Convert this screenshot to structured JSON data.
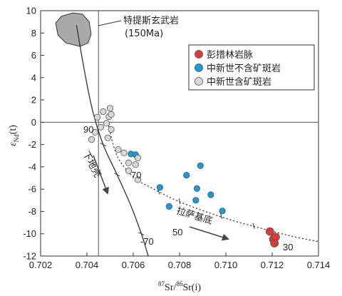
{
  "chart_data": {
    "type": "scatter",
    "xlabel": {
      "sup1": "87",
      "mid1": "Sr/",
      "sup2": "86",
      "mid2": "Sr(i)"
    },
    "ylabel": {
      "eps": "ε",
      "sub": "Nd",
      "rest": "(t)"
    },
    "xlim": [
      0.702,
      0.714
    ],
    "ylim": [
      -12,
      10
    ],
    "xticks": [
      "0.702",
      "0.704",
      "0.706",
      "0.708",
      "0.710",
      "0.712",
      "0.714"
    ],
    "yticks": [
      "10",
      "8",
      "6",
      "4",
      "2",
      "0",
      "-2",
      "-4",
      "-6",
      "-8",
      "-10",
      "-12"
    ],
    "ref_lines": {
      "x": 0.7045,
      "y": 0
    },
    "legend": {
      "placement": "top-right",
      "items": [
        {
          "label": "彭措林岩脉",
          "color": "#d83a3a"
        },
        {
          "label": "中新世不含矿斑岩",
          "color": "#1a9ad6"
        },
        {
          "label": "中新世含矿斑岩",
          "color": "#d8d8d8"
        }
      ]
    },
    "series": [
      {
        "name": "彭措林岩脉",
        "color": "#d83a3a",
        "points": [
          [
            0.7119,
            -9.8
          ],
          [
            0.71205,
            -10.5
          ],
          [
            0.71215,
            -10.3
          ],
          [
            0.7121,
            -10.85
          ]
        ]
      },
      {
        "name": "中新世不含矿斑岩",
        "color": "#1a9ad6",
        "points": [
          [
            0.7059,
            -2.85
          ],
          [
            0.7061,
            -2.9
          ],
          [
            0.70715,
            -5.85
          ],
          [
            0.70755,
            -7.55
          ],
          [
            0.7083,
            -4.75
          ],
          [
            0.70875,
            -5.95
          ],
          [
            0.7087,
            -7.0
          ],
          [
            0.7089,
            -3.9
          ],
          [
            0.70935,
            -6.5
          ],
          [
            0.70985,
            -7.95
          ]
        ]
      },
      {
        "name": "中新世含矿斑岩",
        "color": "#d8d8d8",
        "points": [
          [
            0.7042,
            -1.55
          ],
          [
            0.70435,
            -0.9
          ],
          [
            0.70445,
            0.45
          ],
          [
            0.7047,
            0.95
          ],
          [
            0.70495,
            0.5
          ],
          [
            0.7046,
            -0.45
          ],
          [
            0.70485,
            -0.1
          ],
          [
            0.705,
            1.25
          ],
          [
            0.70505,
            0.7
          ],
          [
            0.70505,
            -0.65
          ],
          [
            0.7049,
            -1.4
          ],
          [
            0.70535,
            -2.45
          ],
          [
            0.7056,
            -2.75
          ],
          [
            0.7058,
            -3.65
          ],
          [
            0.7058,
            -4.35
          ],
          [
            0.7062,
            -3.2
          ],
          [
            0.7061,
            -3.8
          ],
          [
            0.7062,
            -5.15
          ]
        ]
      }
    ],
    "lower_crust_curve": [
      [
        0.70355,
        8.7
      ],
      [
        0.7039,
        4.5
      ],
      [
        0.70425,
        1.0
      ],
      [
        0.7047,
        -2.0
      ],
      [
        0.7053,
        -4.7
      ],
      [
        0.7059,
        -7.5
      ],
      [
        0.70635,
        -10.0
      ],
      [
        0.70665,
        -12.0
      ]
    ],
    "lhasa_basement_curve": [
      [
        0.7049,
        0.0
      ],
      [
        0.7053,
        -3.0
      ],
      [
        0.706,
        -4.9
      ],
      [
        0.7068,
        -5.9
      ],
      [
        0.7078,
        -6.95
      ],
      [
        0.7089,
        -7.85
      ],
      [
        0.7102,
        -8.75
      ],
      [
        0.7115,
        -9.5
      ],
      [
        0.7128,
        -10.2
      ],
      [
        0.714,
        -10.7
      ]
    ],
    "lower_crust_ticks": [
      [
        0.7047,
        -2.0
      ],
      [
        0.7053,
        -4.7
      ],
      [
        0.70635,
        -10.0
      ]
    ],
    "lhasa_ticks": [
      [
        0.7071,
        -6.2
      ],
      [
        0.708,
        -7.1
      ],
      [
        0.7098,
        -8.4
      ],
      [
        0.7112,
        -9.3
      ],
      [
        0.712,
        -9.8
      ]
    ],
    "region_label": {
      "name": "特提斯玄武岩",
      "age": "(150Ma)"
    },
    "region_polygon": [
      [
        0.70265,
        8.9
      ],
      [
        0.7029,
        9.5
      ],
      [
        0.7034,
        9.8
      ],
      [
        0.7038,
        9.7
      ],
      [
        0.7041,
        9.0
      ],
      [
        0.70418,
        7.9
      ],
      [
        0.70405,
        7.1
      ],
      [
        0.7037,
        6.8
      ],
      [
        0.7031,
        7.1
      ],
      [
        0.70275,
        7.8
      ]
    ],
    "curve_labels": {
      "lower_crust": "下地壳",
      "lhasa": "拉萨基底"
    },
    "mixing_labels": [
      "90",
      "70",
      "-70",
      "50",
      "30"
    ]
  }
}
